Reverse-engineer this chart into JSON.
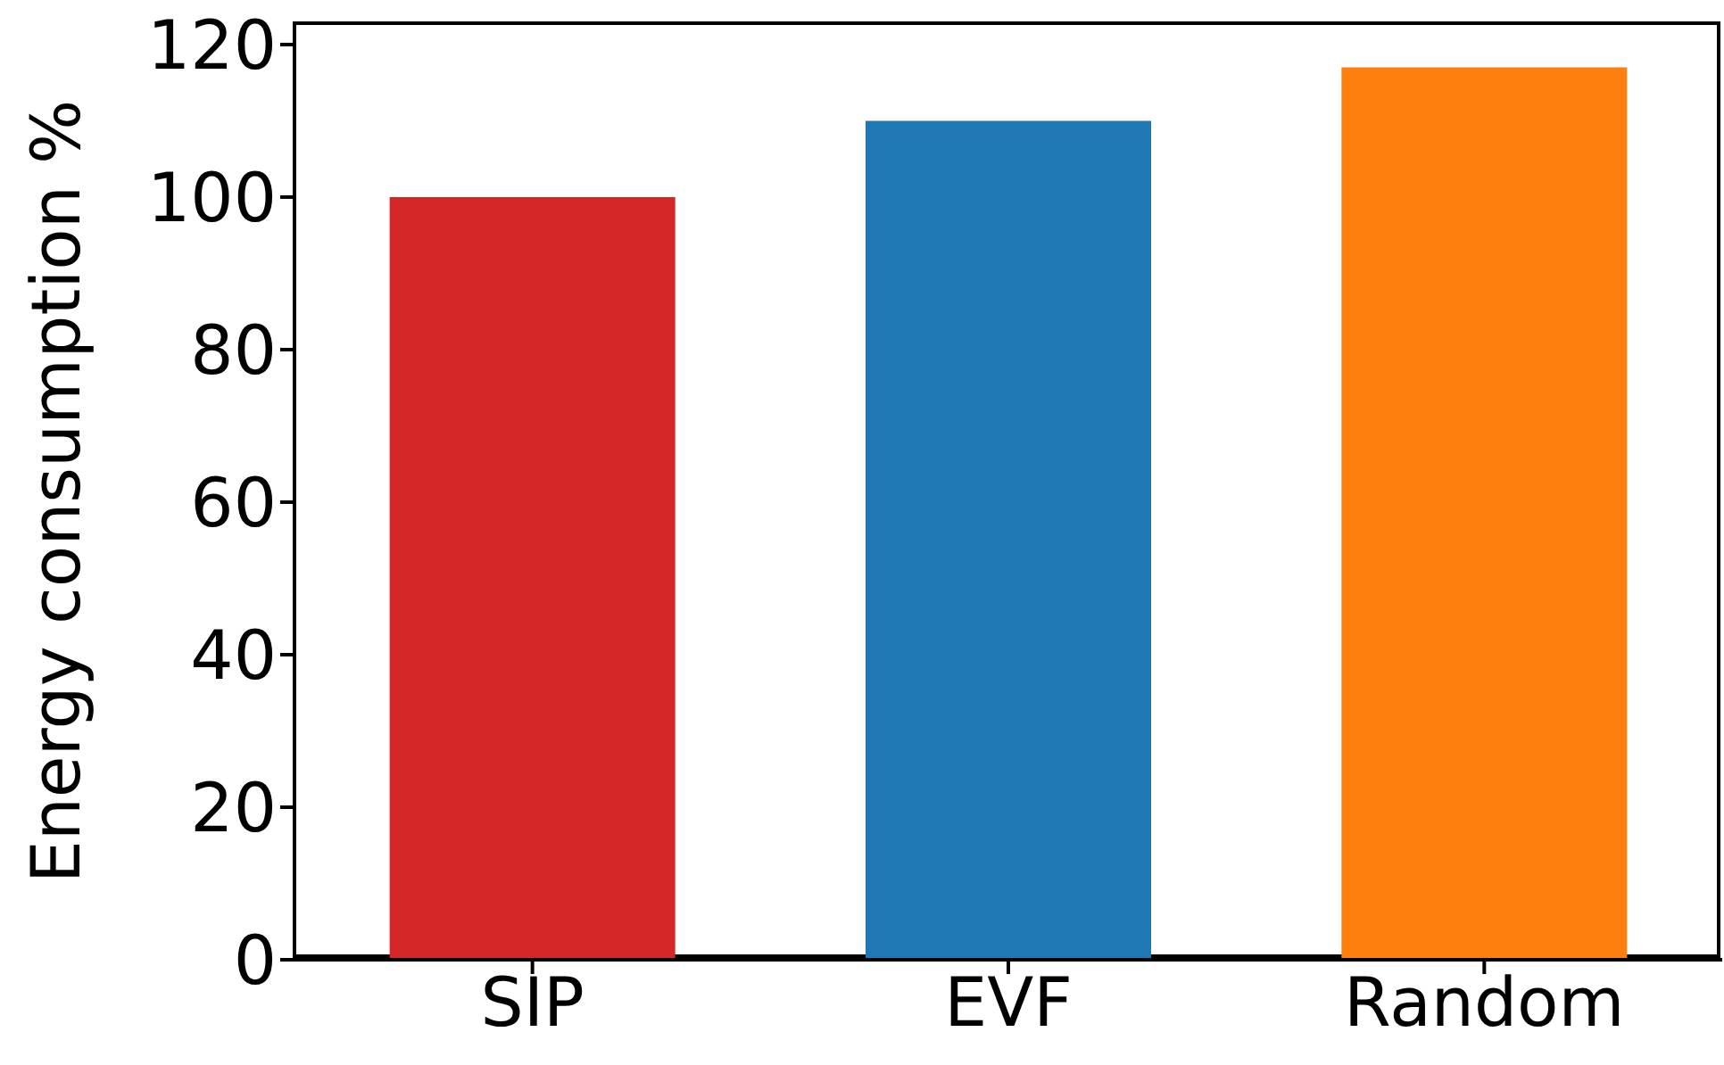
{
  "chart_data": {
    "type": "bar",
    "ylabel": "Energy consumption %",
    "categories": [
      "SIP",
      "EVF",
      "Random"
    ],
    "values": [
      100,
      110,
      117
    ],
    "colors": [
      "#d62728",
      "#1f77b4",
      "#ff7f0e"
    ],
    "ylim": [
      0,
      122.8
    ],
    "yticks": [
      0,
      20,
      40,
      60,
      80,
      100,
      120
    ],
    "grid": false,
    "legend": false
  }
}
